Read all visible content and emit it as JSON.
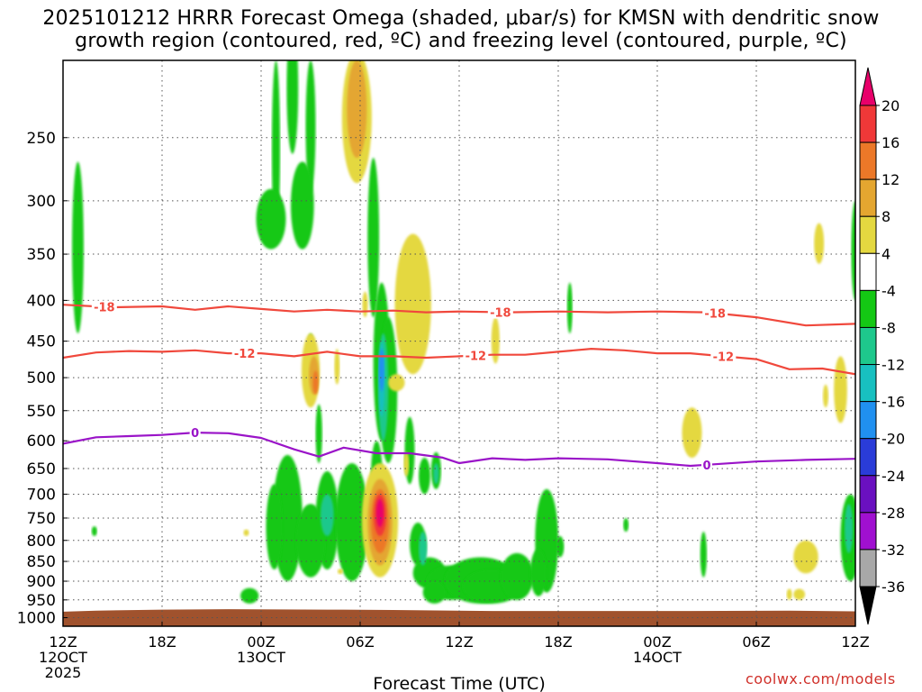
{
  "chart_data": {
    "type": "time-height cross section",
    "title_line1": "2025101212 HRRR Forecast Omega (shaded, μbar/s) for KMSN with dendritic snow",
    "title_line2": "growth region (contoured, red, ºC) and freezing level (contoured, purple, ºC)",
    "xlabel": "Forecast Time (UTC)",
    "source": "coolwx.com/models",
    "xlim_hours": [
      0,
      48
    ],
    "ylim_hpa": [
      200,
      1025
    ],
    "y_ticks": [
      250,
      300,
      350,
      400,
      450,
      500,
      550,
      600,
      650,
      700,
      750,
      800,
      850,
      900,
      950,
      1000
    ],
    "x_ticks": [
      {
        "hour": 0,
        "lines": [
          "12Z",
          "12OCT",
          "2025"
        ]
      },
      {
        "hour": 6,
        "lines": [
          "18Z"
        ]
      },
      {
        "hour": 12,
        "lines": [
          "00Z",
          "13OCT"
        ]
      },
      {
        "hour": 18,
        "lines": [
          "06Z"
        ]
      },
      {
        "hour": 24,
        "lines": [
          "12Z"
        ]
      },
      {
        "hour": 30,
        "lines": [
          "18Z"
        ]
      },
      {
        "hour": 36,
        "lines": [
          "00Z",
          "14OCT"
        ]
      },
      {
        "hour": 42,
        "lines": [
          "06Z"
        ]
      },
      {
        "hour": 48,
        "lines": [
          "12Z"
        ]
      }
    ],
    "colorbar": {
      "labels": [
        "20",
        "16",
        "12",
        "8",
        "4",
        "-4",
        "-8",
        "-12",
        "-16",
        "-20",
        "-24",
        "-28",
        "-32",
        "-36"
      ],
      "bins": [
        {
          "range": ">20",
          "color": "#e8006a"
        },
        {
          "range": "16 to 20",
          "color": "#f03838"
        },
        {
          "range": "12 to 16",
          "color": "#ec7828"
        },
        {
          "range": "8 to 12",
          "color": "#e4a630"
        },
        {
          "range": "4 to 8",
          "color": "#e4d840"
        },
        {
          "range": "-4 to 4",
          "color": "#ffffff"
        },
        {
          "range": "-8 to -4",
          "color": "#14c814"
        },
        {
          "range": "-12 to -8",
          "color": "#1ec88c"
        },
        {
          "range": "-16 to -12",
          "color": "#18c0c0"
        },
        {
          "range": "-20 to -16",
          "color": "#2090f0"
        },
        {
          "range": "-24 to -20",
          "color": "#2a3cd8"
        },
        {
          "range": "-28 to -24",
          "color": "#6a10c0"
        },
        {
          "range": "-32 to -28",
          "color": "#a010d0"
        },
        {
          "range": "-36 to -32",
          "color": "#a8a8a8"
        },
        {
          "range": "<-36",
          "color": "#000000"
        }
      ]
    },
    "contours": [
      {
        "name": "dendritic -18C",
        "label": "-18",
        "color": "#f0483c",
        "label_hours": [
          2.5,
          26.5,
          39.5
        ],
        "points": [
          [
            0,
            405
          ],
          [
            3,
            408
          ],
          [
            6,
            407
          ],
          [
            8,
            411
          ],
          [
            10,
            407
          ],
          [
            12,
            410
          ],
          [
            14,
            413
          ],
          [
            16,
            411
          ],
          [
            18,
            413
          ],
          [
            20,
            412
          ],
          [
            22,
            414
          ],
          [
            24,
            413
          ],
          [
            27,
            414
          ],
          [
            30,
            413
          ],
          [
            33,
            414
          ],
          [
            36,
            413
          ],
          [
            39,
            414
          ],
          [
            42,
            420
          ],
          [
            45,
            430
          ],
          [
            48,
            428
          ]
        ]
      },
      {
        "name": "dendritic -12C",
        "label": "-12",
        "color": "#f0483c",
        "label_hours": [
          11,
          25,
          40
        ],
        "points": [
          [
            0,
            472
          ],
          [
            2,
            465
          ],
          [
            4,
            463
          ],
          [
            6,
            464
          ],
          [
            8,
            462
          ],
          [
            10,
            466
          ],
          [
            12,
            466
          ],
          [
            14,
            470
          ],
          [
            16,
            464
          ],
          [
            18,
            470
          ],
          [
            20,
            470
          ],
          [
            22,
            472
          ],
          [
            24,
            470
          ],
          [
            26,
            468
          ],
          [
            28,
            468
          ],
          [
            30,
            464
          ],
          [
            32,
            460
          ],
          [
            34,
            462
          ],
          [
            36,
            466
          ],
          [
            38,
            466
          ],
          [
            40,
            470
          ],
          [
            42,
            474
          ],
          [
            44,
            488
          ],
          [
            46,
            487
          ],
          [
            48,
            495
          ]
        ]
      },
      {
        "name": "freezing level 0C",
        "label": "0",
        "color": "#9a14c8",
        "label_hours": [
          8,
          39
        ],
        "points": [
          [
            0,
            605
          ],
          [
            2,
            594
          ],
          [
            4,
            592
          ],
          [
            6,
            590
          ],
          [
            8,
            586
          ],
          [
            10,
            587
          ],
          [
            12,
            595
          ],
          [
            14,
            615
          ],
          [
            15.5,
            628
          ],
          [
            17,
            612
          ],
          [
            19,
            622
          ],
          [
            21,
            622
          ],
          [
            23,
            630
          ],
          [
            24,
            640
          ],
          [
            26,
            631
          ],
          [
            28,
            634
          ],
          [
            30,
            631
          ],
          [
            33,
            633
          ],
          [
            36,
            640
          ],
          [
            38,
            645
          ],
          [
            39,
            643
          ],
          [
            42,
            637
          ],
          [
            45,
            634
          ],
          [
            48,
            632
          ]
        ]
      }
    ]
  }
}
